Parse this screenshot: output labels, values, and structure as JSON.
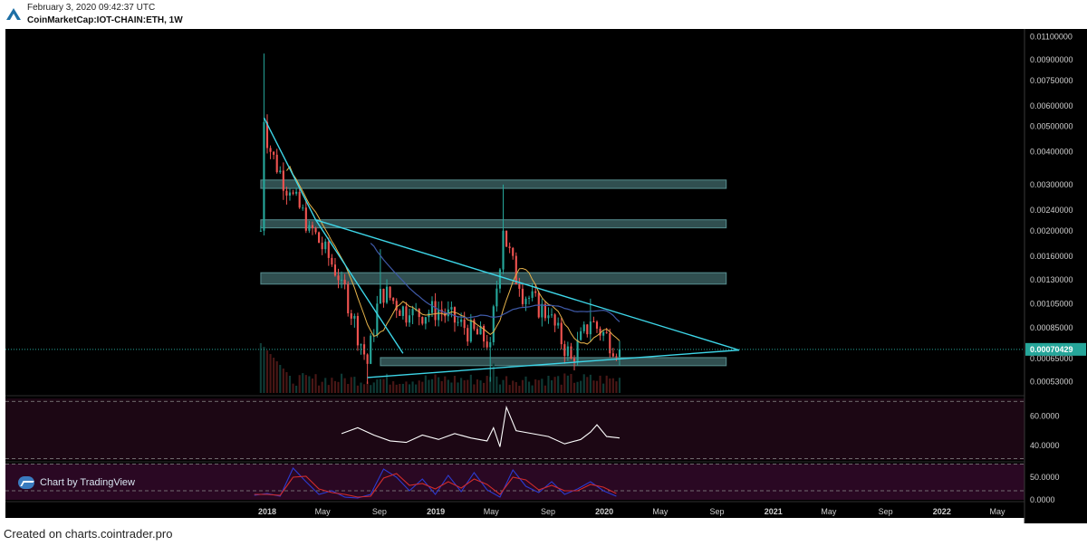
{
  "header": {
    "date": "February 3, 2020 09:42:37 UTC",
    "symbol": "CoinMarketCap:IOT-CHAIN:ETH, 1W",
    "logo_icon": "cointrader-logo-icon"
  },
  "footer": {
    "text": "Created on charts.cointrader.pro"
  },
  "badge": {
    "label": "Chart by TradingView",
    "icon": "tradingview-icon"
  },
  "colors": {
    "background": "#000000",
    "up": "#26a69a",
    "down": "#ef5350",
    "trendline": "#3dd6e8",
    "zone": "#7fcfd1",
    "ma": "#e6b34a",
    "ma_long": "#3f5aa8",
    "rsi_panel": "#1c0714",
    "rsi_line": "#ffffff",
    "stoch_panel": "#2a0823",
    "stoch_k": "#2c3bd1",
    "stoch_d": "#d12c2c",
    "price_marker": "#26a69a"
  },
  "chart_data": [
    {
      "type": "candlestick",
      "title": "",
      "scale": "log",
      "price_ticks": [
        "0.01100000",
        "0.00900000",
        "0.00750000",
        "0.00600000",
        "0.00500000",
        "0.00400000",
        "0.00300000",
        "0.00240000",
        "0.00200000",
        "0.00160000",
        "0.00130000",
        "0.00105000",
        "0.00085000",
        "0.00065000",
        "0.00053000"
      ],
      "price_tick_values": [
        0.011,
        0.009,
        0.0075,
        0.006,
        0.005,
        0.004,
        0.003,
        0.0024,
        0.002,
        0.0016,
        0.0013,
        0.00105,
        0.00085,
        0.00065,
        0.00053
      ],
      "ylim": [
        0.00048,
        0.0116
      ],
      "x_ticks": [
        "2018",
        "May",
        "Sep",
        "2019",
        "May",
        "Sep",
        "2020",
        "May",
        "Sep",
        "2021",
        "May",
        "Sep",
        "2022",
        "May"
      ],
      "x_tick_dates": [
        "2018-01-01",
        "2018-05-01",
        "2018-09-01",
        "2019-01-01",
        "2019-05-01",
        "2019-09-01",
        "2020-01-01",
        "2020-05-01",
        "2020-09-01",
        "2021-01-01",
        "2021-05-01",
        "2021-09-01",
        "2022-01-01",
        "2022-05-01"
      ],
      "last_price": "0.00070429",
      "ohlc_key_points": [
        {
          "date": "2017-12-18",
          "close": 0.002
        },
        {
          "date": "2017-12-25",
          "high": 0.0095,
          "close": 0.0052
        },
        {
          "date": "2018-01-08",
          "close": 0.004
        },
        {
          "date": "2018-02-19",
          "close": 0.0028
        },
        {
          "date": "2018-04-02",
          "close": 0.0021
        },
        {
          "date": "2018-06-11",
          "close": 0.0013
        },
        {
          "date": "2018-08-06",
          "low": 0.00052,
          "close": 0.00062
        },
        {
          "date": "2018-09-03",
          "high": 0.0017,
          "close": 0.0012
        },
        {
          "date": "2018-11-05",
          "close": 0.00095
        },
        {
          "date": "2019-01-07",
          "close": 0.001
        },
        {
          "date": "2019-03-04",
          "close": 0.00085
        },
        {
          "date": "2019-04-29",
          "low": 0.00053,
          "close": 0.00075
        },
        {
          "date": "2019-05-27",
          "high": 0.003,
          "close": 0.002
        },
        {
          "date": "2019-07-01",
          "close": 0.0012
        },
        {
          "date": "2019-09-02",
          "close": 0.00095
        },
        {
          "date": "2019-10-21",
          "close": 0.00065
        },
        {
          "date": "2019-12-02",
          "high": 0.0011,
          "close": 0.0009
        },
        {
          "date": "2020-02-03",
          "close": 0.00070429
        }
      ],
      "horizontal_zones": [
        {
          "from_date": "2017-12-18",
          "to_date": "2020-09-21",
          "low": 0.0029,
          "high": 0.00305
        },
        {
          "from_date": "2017-12-18",
          "to_date": "2020-09-21",
          "low": 0.00205,
          "high": 0.00215
        },
        {
          "from_date": "2017-12-18",
          "to_date": "2020-09-21",
          "low": 0.00125,
          "high": 0.00135
        },
        {
          "from_date": "2018-09-03",
          "to_date": "2020-09-21",
          "low": 0.00061,
          "high": 0.00064
        }
      ],
      "trendlines": [
        {
          "from": {
            "date": "2017-12-25",
            "price": 0.0054
          },
          "to": {
            "date": "2018-04-16",
            "price": 0.0022
          }
        },
        {
          "from": {
            "date": "2018-04-16",
            "price": 0.0022
          },
          "to": {
            "date": "2018-10-22",
            "price": 0.00068
          }
        },
        {
          "from": {
            "date": "2018-04-16",
            "price": 0.0022
          },
          "to": {
            "date": "2020-10-19",
            "price": 0.0007
          }
        },
        {
          "from": {
            "date": "2018-08-06",
            "price": 0.00055
          },
          "to": {
            "date": "2020-10-19",
            "price": 0.0007
          }
        }
      ]
    },
    {
      "type": "line",
      "name": "",
      "y_ticks": [
        "60.0000",
        "40.0000"
      ],
      "y_tick_values": [
        60,
        40
      ],
      "ylim": [
        30,
        72
      ],
      "x": [
        "2018-06-11",
        "2018-07-16",
        "2018-08-20",
        "2018-09-24",
        "2018-10-29",
        "2018-12-03",
        "2019-01-07",
        "2019-02-11",
        "2019-03-18",
        "2019-04-22",
        "2019-05-06",
        "2019-05-20",
        "2019-06-03",
        "2019-06-24",
        "2019-07-29",
        "2019-09-02",
        "2019-10-07",
        "2019-11-11",
        "2019-12-02",
        "2019-12-16",
        "2020-01-06",
        "2020-02-03"
      ],
      "values": [
        48,
        52,
        47,
        43,
        42,
        47,
        44,
        48,
        45,
        43,
        52,
        39,
        66,
        50,
        48,
        46,
        41,
        44,
        49,
        54,
        46,
        45
      ]
    },
    {
      "type": "line",
      "name": "",
      "y_ticks": [
        "50.0000",
        "0.0000"
      ],
      "y_tick_values": [
        50,
        0
      ],
      "ylim": [
        0,
        80
      ],
      "x": [
        "2017-12-04",
        "2018-01-01",
        "2018-01-29",
        "2018-02-26",
        "2018-03-26",
        "2018-04-23",
        "2018-05-21",
        "2018-06-18",
        "2018-07-16",
        "2018-08-13",
        "2018-09-10",
        "2018-10-08",
        "2018-11-05",
        "2018-12-03",
        "2018-12-31",
        "2019-01-28",
        "2019-02-25",
        "2019-03-25",
        "2019-04-22",
        "2019-05-20",
        "2019-06-17",
        "2019-07-15",
        "2019-08-12",
        "2019-09-09",
        "2019-10-07",
        "2019-11-04",
        "2019-12-02",
        "2019-12-30",
        "2020-01-27"
      ],
      "series": [
        {
          "name": "",
          "values": [
            10,
            14,
            8,
            70,
            40,
            12,
            20,
            6,
            4,
            12,
            68,
            50,
            20,
            46,
            12,
            54,
            18,
            60,
            22,
            6,
            66,
            30,
            16,
            40,
            12,
            24,
            40,
            20,
            8
          ]
        },
        {
          "name": "",
          "values": [
            12,
            12,
            10,
            50,
            52,
            24,
            16,
            12,
            6,
            8,
            48,
            58,
            32,
            36,
            24,
            40,
            26,
            46,
            34,
            12,
            50,
            44,
            22,
            32,
            20,
            20,
            34,
            28,
            14
          ]
        }
      ]
    }
  ]
}
